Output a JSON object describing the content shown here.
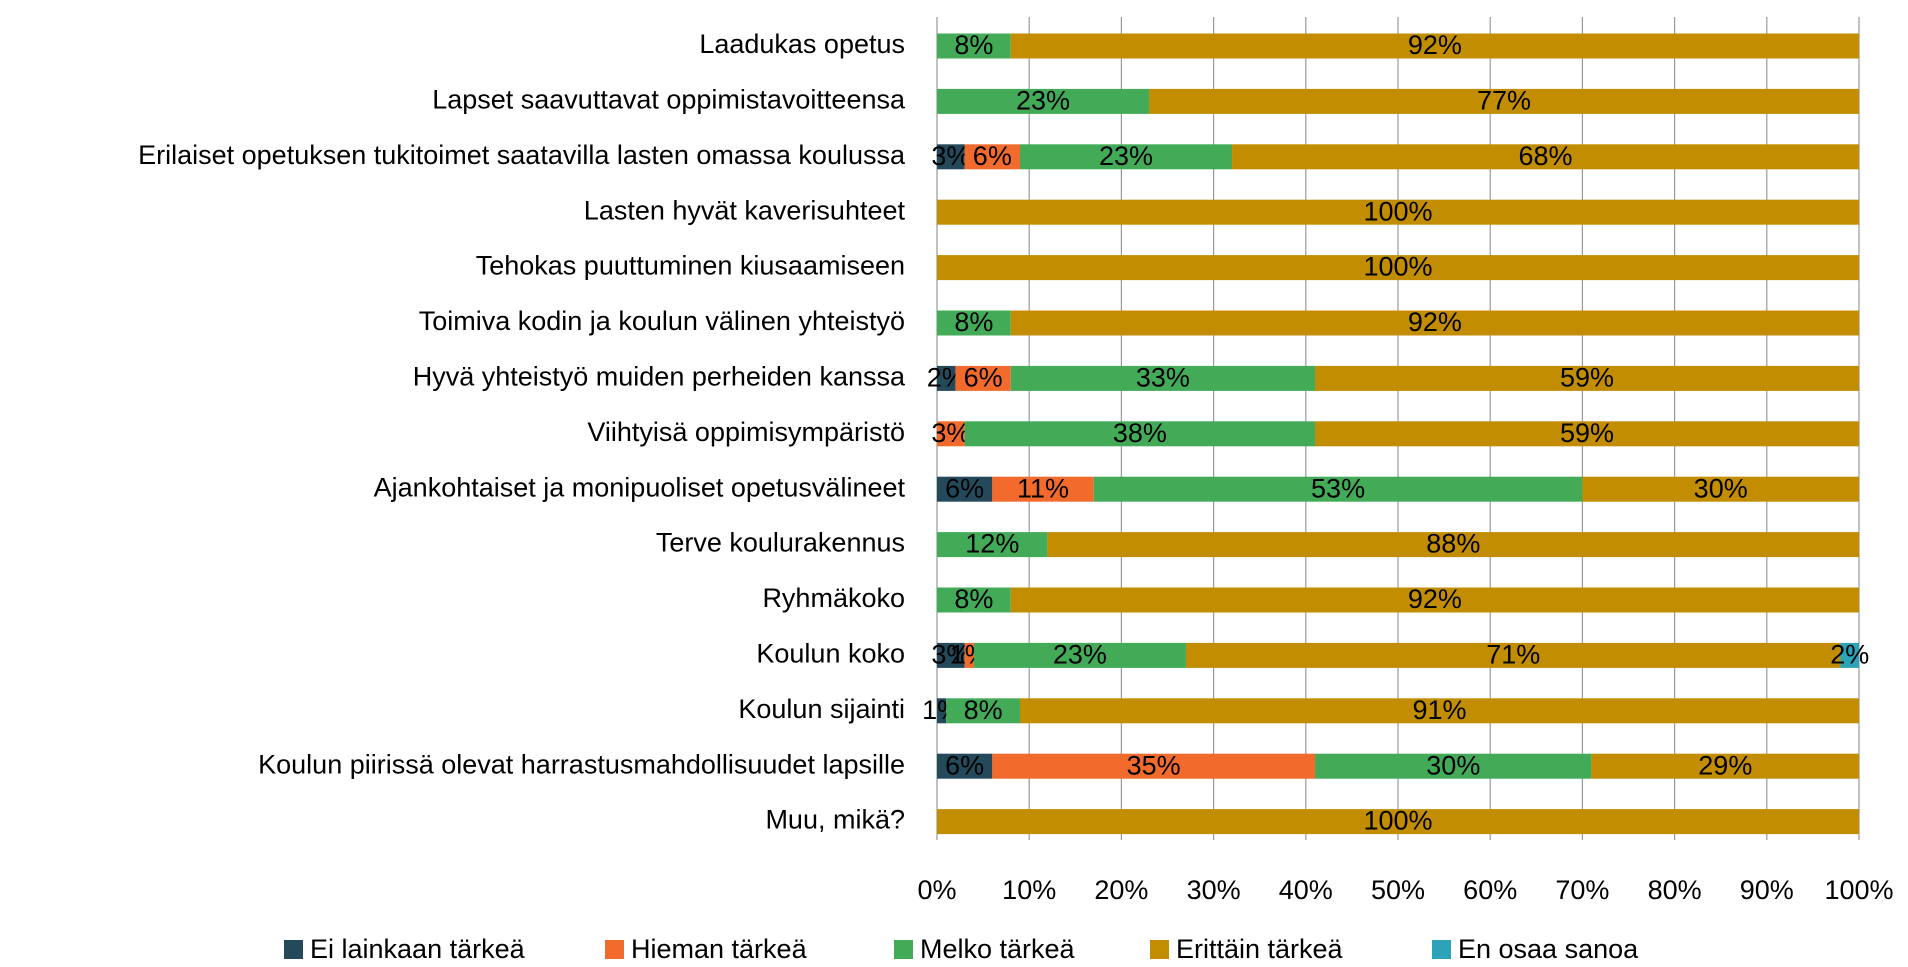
{
  "chart_data": {
    "type": "stacked_barh",
    "categories": [
      "Laadukas opetus",
      "Lapset saavuttavat oppimistavoitteensa",
      "Erilaiset opetuksen tukitoimet saatavilla lasten omassa koulussa",
      "Lasten hyvät kaverisuhteet",
      "Tehokas puuttuminen kiusaamiseen",
      "Toimiva kodin ja koulun välinen yhteistyö",
      "Hyvä yhteistyö muiden perheiden kanssa",
      "Viihtyisä oppimisympäristö",
      "Ajankohtaiset ja monipuoliset opetusvälineet",
      "Terve koulurakennus",
      "Ryhmäkoko",
      "Koulun koko",
      "Koulun sijainti",
      "Koulun piirissä olevat harrastusmahdollisuudet lapsille",
      "Muu, mikä?"
    ],
    "series": [
      {
        "name": "Ei lainkaan tärkeä",
        "color": "#24495a",
        "values": [
          0,
          0,
          3,
          0,
          0,
          0,
          2,
          0,
          6,
          0,
          0,
          3,
          1,
          6,
          0
        ],
        "value_labels": [
          null,
          null,
          "3%",
          null,
          null,
          null,
          "2%",
          null,
          "6%",
          null,
          null,
          "3%",
          "1%",
          "6%",
          null
        ]
      },
      {
        "name": "Hieman tärkeä",
        "color": "#f26b2c",
        "values": [
          0,
          0,
          6,
          0,
          0,
          0,
          6,
          3,
          11,
          0,
          0,
          1,
          0,
          35,
          0
        ],
        "value_labels": [
          null,
          null,
          "6%",
          null,
          null,
          null,
          "6%",
          "3%",
          "11%",
          null,
          null,
          "1%",
          null,
          "35%",
          null
        ]
      },
      {
        "name": "Melko tärkeä",
        "color": "#43aa58",
        "values": [
          8,
          23,
          23,
          0,
          0,
          8,
          33,
          38,
          53,
          12,
          8,
          23,
          8,
          30,
          0
        ],
        "value_labels": [
          "8%",
          "23%",
          "23%",
          null,
          null,
          "8%",
          "33%",
          "38%",
          "53%",
          "12%",
          "8%",
          "23%",
          "8%",
          "30%",
          null
        ]
      },
      {
        "name": "Erittäin tärkeä",
        "color": "#c28d00",
        "values": [
          92,
          77,
          68,
          100,
          100,
          92,
          59,
          59,
          30,
          88,
          92,
          71,
          91,
          29,
          100
        ],
        "value_labels": [
          "92%",
          "77%",
          "68%",
          "100%",
          "100%",
          "92%",
          "59%",
          "59%",
          "30%",
          "88%",
          "92%",
          "71%",
          "91%",
          "29%",
          "100%"
        ]
      },
      {
        "name": "En osaa sanoa",
        "color": "#2ba3b9",
        "values": [
          0,
          0,
          0,
          0,
          0,
          0,
          0,
          0,
          0,
          0,
          0,
          2,
          0,
          0,
          0
        ],
        "value_labels": [
          null,
          null,
          null,
          null,
          null,
          null,
          null,
          null,
          null,
          null,
          null,
          "2%",
          null,
          null,
          null
        ]
      }
    ],
    "xlim": [
      0,
      100
    ],
    "xticks": [
      {
        "value": 0,
        "label": "0%"
      },
      {
        "value": 10,
        "label": "10%"
      },
      {
        "value": 20,
        "label": "20%"
      },
      {
        "value": 30,
        "label": "30%"
      },
      {
        "value": 40,
        "label": "40%"
      },
      {
        "value": 50,
        "label": "50%"
      },
      {
        "value": 60,
        "label": "60%"
      },
      {
        "value": 70,
        "label": "70%"
      },
      {
        "value": 80,
        "label": "80%"
      },
      {
        "value": 90,
        "label": "90%"
      },
      {
        "value": 100,
        "label": "100%"
      }
    ],
    "grid": true,
    "legend": "bottom"
  }
}
